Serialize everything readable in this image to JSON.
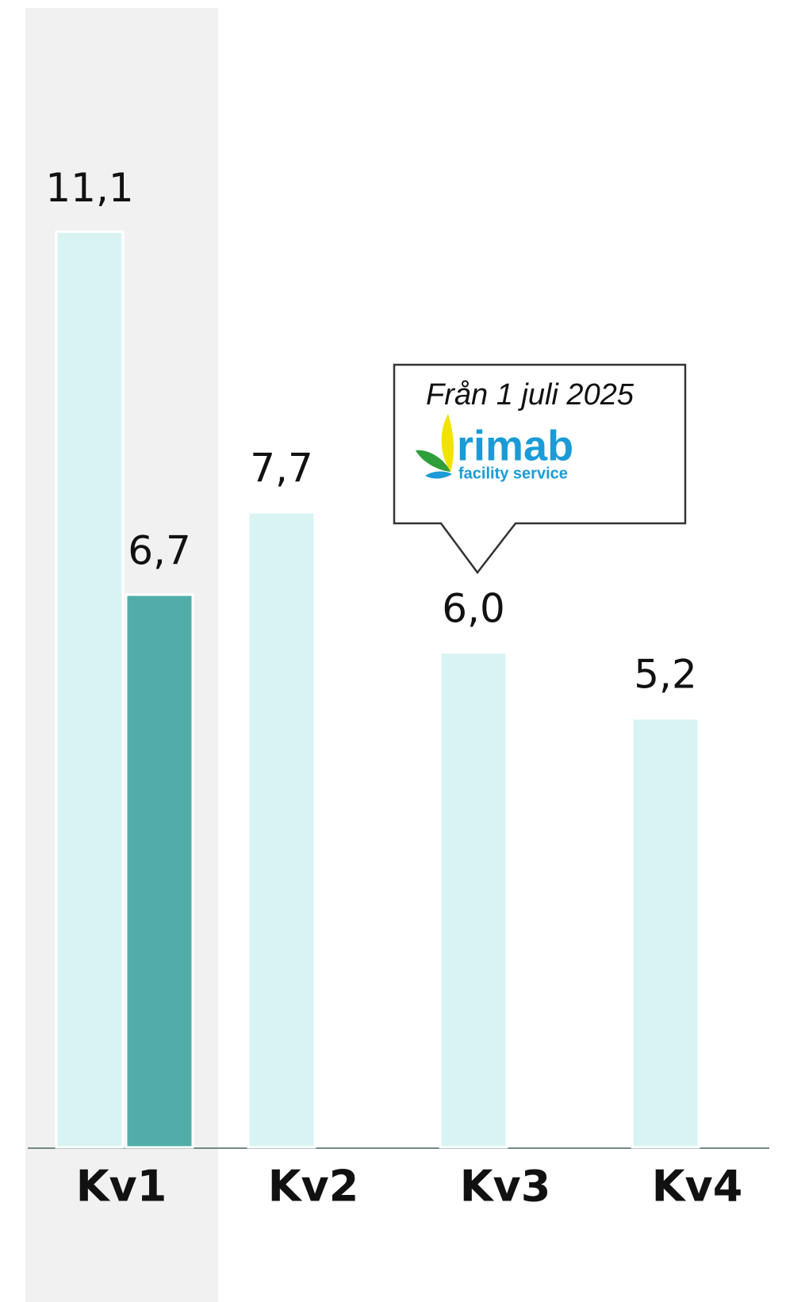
{
  "chart_data": {
    "type": "bar",
    "categories": [
      "Kv1",
      "Kv2",
      "Kv3",
      "Kv4"
    ],
    "series": [
      {
        "color": "#d8f4f2",
        "values": [
          11.1,
          7.7,
          6.0,
          5.2
        ],
        "value_labels": [
          "11,1",
          "7,7",
          "6,0",
          "5,2"
        ]
      },
      {
        "color": "#52ada8",
        "values": [
          6.7,
          null,
          null,
          null
        ],
        "value_labels": [
          "6,7",
          null,
          null,
          null
        ]
      }
    ],
    "ylim": [
      0,
      13.9
    ],
    "annotation": {
      "text": "Från 1 juli 2025",
      "logo_name": "rimab",
      "logo_tagline": "facility service"
    }
  }
}
